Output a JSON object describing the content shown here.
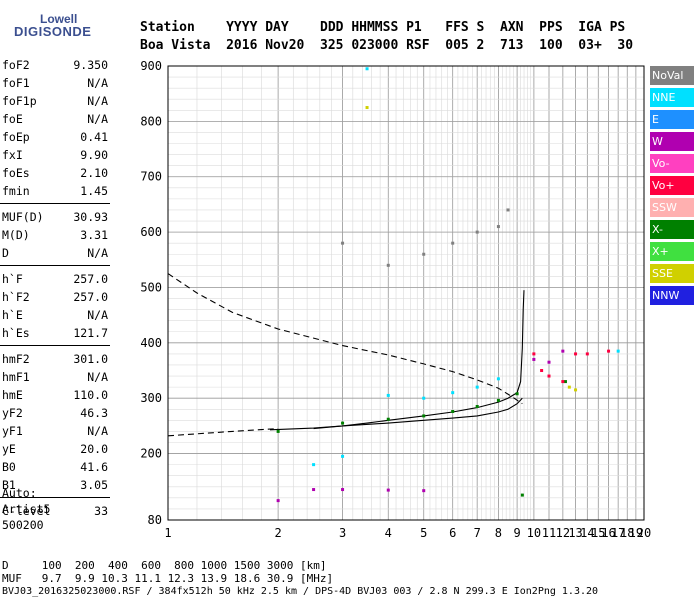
{
  "logo": {
    "line1": "Lowell",
    "line2": "DIGISONDE"
  },
  "header": {
    "labels": "Station    YYYY DAY    DDD HHMMSS P1   FFS S  AXN  PPS  IGA PS",
    "values": "Boa Vista  2016 Nov20  325 023000 RSF  005 2  713  100  03+  30"
  },
  "params": [
    [
      {
        "label": "foF2",
        "value": "9.350"
      },
      {
        "label": "foF1",
        "value": "N/A"
      },
      {
        "label": "foF1p",
        "value": "N/A"
      },
      {
        "label": "foE",
        "value": "N/A"
      },
      {
        "label": "foEp",
        "value": "0.41"
      },
      {
        "label": "fxI",
        "value": "9.90"
      },
      {
        "label": "foEs",
        "value": "2.10"
      },
      {
        "label": "fmin",
        "value": "1.45"
      }
    ],
    [
      {
        "label": "MUF(D)",
        "value": "30.93"
      },
      {
        "label": "M(D)",
        "value": "3.31"
      },
      {
        "label": "D",
        "value": "N/A"
      }
    ],
    [
      {
        "label": "h`F",
        "value": "257.0"
      },
      {
        "label": "h`F2",
        "value": "257.0"
      },
      {
        "label": "h`E",
        "value": "N/A"
      },
      {
        "label": "h`Es",
        "value": "121.7"
      }
    ],
    [
      {
        "label": "hmF2",
        "value": "301.0"
      },
      {
        "label": "hmF1",
        "value": "N/A"
      },
      {
        "label": "hmE",
        "value": "110.0"
      },
      {
        "label": "yF2",
        "value": "46.3"
      },
      {
        "label": "yF1",
        "value": "N/A"
      },
      {
        "label": "yE",
        "value": "20.0"
      },
      {
        "label": "B0",
        "value": "41.6"
      },
      {
        "label": "B1",
        "value": "3.05"
      }
    ],
    [
      {
        "label": "C-level",
        "value": "33"
      }
    ]
  ],
  "auto": {
    "line1": "Auto:",
    "line2": "Artist5",
    "line3": "500200"
  },
  "legend": [
    {
      "label": "NoVal",
      "color": "#808080"
    },
    {
      "label": "NNE",
      "color": "#00e0ff"
    },
    {
      "label": "E",
      "color": "#1e90ff"
    },
    {
      "label": "W",
      "color": "#b000b0"
    },
    {
      "label": "Vo-",
      "color": "#ff40c0"
    },
    {
      "label": "Vo+",
      "color": "#ff0040"
    },
    {
      "label": "SSW",
      "color": "#ffb0b0"
    },
    {
      "label": "X-",
      "color": "#008000"
    },
    {
      "label": "X+",
      "color": "#40e040"
    },
    {
      "label": "SSE",
      "color": "#d0d000"
    },
    {
      "label": "NNW",
      "color": "#2020e0"
    }
  ],
  "footer": {
    "d_row": "D     100  200  400  600  800 1000 1500 3000 [km]",
    "muf_row": "MUF   9.7  9.9 10.3 11.1 12.3 13.9 18.6 30.9 [MHz]",
    "file_row": "BVJ03_2016325023000.RSF / 384fx512h 50 kHz 2.5 km / DPS-4D BVJ03 003 / 2.8 N 299.3 E Ion2Png 1.3.20"
  },
  "chart_data": {
    "type": "scatter",
    "title": "",
    "xlabel": "",
    "ylabel": "",
    "x_ticks": [
      1,
      2,
      3,
      4,
      5,
      6,
      7,
      8,
      9,
      10,
      11,
      12,
      13,
      14,
      15,
      16,
      17,
      18,
      19,
      20
    ],
    "y_ticks": [
      80,
      200,
      300,
      400,
      500,
      600,
      700,
      800,
      900
    ],
    "xlim": [
      1,
      20
    ],
    "ylim": [
      80,
      900
    ],
    "x_scale": "log",
    "grid": true,
    "series": [
      {
        "type": "line",
        "values": [
          [
            1.9,
            243
          ],
          [
            2.5,
            246
          ],
          [
            3.0,
            250
          ],
          [
            3.5,
            255
          ],
          [
            4.0,
            260
          ],
          [
            5.0,
            268
          ],
          [
            6.0,
            275
          ],
          [
            7.0,
            283
          ],
          [
            8.0,
            293
          ],
          [
            8.5,
            300
          ],
          [
            9.0,
            310
          ],
          [
            9.2,
            330
          ],
          [
            9.3,
            390
          ],
          [
            9.35,
            460
          ],
          [
            9.4,
            495
          ]
        ]
      },
      {
        "type": "line",
        "values": [
          [
            2.5,
            245
          ],
          [
            3.0,
            250
          ],
          [
            4.0,
            255
          ],
          [
            5.0,
            260
          ],
          [
            6.0,
            264
          ],
          [
            7.0,
            268
          ],
          [
            8.0,
            275
          ],
          [
            8.5,
            280
          ],
          [
            9.0,
            290
          ],
          [
            9.3,
            300
          ]
        ]
      },
      {
        "type": "dashed",
        "values": [
          [
            1.0,
            525
          ],
          [
            1.2,
            490
          ],
          [
            1.5,
            455
          ],
          [
            2.0,
            425
          ],
          [
            3.0,
            395
          ],
          [
            4.0,
            378
          ],
          [
            5.0,
            362
          ],
          [
            6.0,
            348
          ],
          [
            7.0,
            333
          ],
          [
            8.0,
            318
          ],
          [
            8.7,
            303
          ],
          [
            9.3,
            290
          ]
        ]
      },
      {
        "type": "dashed",
        "values": [
          [
            1.0,
            232
          ],
          [
            1.5,
            240
          ],
          [
            2.0,
            245
          ]
        ]
      },
      {
        "type": "scatter",
        "name": "X-",
        "values": [
          [
            2.0,
            240
          ],
          [
            3.0,
            255
          ],
          [
            4.0,
            262
          ],
          [
            5.0,
            268
          ],
          [
            6.0,
            276
          ],
          [
            7.0,
            285
          ],
          [
            8.0,
            296
          ],
          [
            9.0,
            308
          ],
          [
            9.3,
            125
          ],
          [
            12.2,
            330
          ]
        ]
      },
      {
        "type": "scatter",
        "name": "W",
        "values": [
          [
            2.0,
            115
          ],
          [
            2.5,
            135
          ],
          [
            3.0,
            135
          ],
          [
            4.0,
            134
          ],
          [
            5.0,
            133
          ],
          [
            10.0,
            370
          ],
          [
            11.0,
            365
          ],
          [
            12.0,
            385
          ]
        ]
      },
      {
        "type": "scatter",
        "name": "NNE",
        "values": [
          [
            2.5,
            180
          ],
          [
            3.0,
            195
          ],
          [
            3.5,
            895
          ],
          [
            4.0,
            305
          ],
          [
            5.0,
            300
          ],
          [
            6.0,
            310
          ],
          [
            7.0,
            320
          ],
          [
            8.0,
            335
          ],
          [
            17.0,
            385
          ]
        ]
      },
      {
        "type": "scatter",
        "name": "Vo+",
        "values": [
          [
            10.0,
            380
          ],
          [
            10.5,
            350
          ],
          [
            11.0,
            340
          ],
          [
            12.0,
            330
          ],
          [
            13.0,
            380
          ],
          [
            14.0,
            380
          ],
          [
            16.0,
            385
          ]
        ]
      },
      {
        "type": "scatter",
        "name": "SSE",
        "values": [
          [
            3.5,
            825
          ],
          [
            12.5,
            320
          ],
          [
            13.0,
            315
          ]
        ]
      },
      {
        "type": "scatter",
        "name": "NoVal",
        "values": [
          [
            3.0,
            580
          ],
          [
            4.0,
            540
          ],
          [
            5.0,
            560
          ],
          [
            6.0,
            580
          ],
          [
            7.0,
            600
          ],
          [
            8.0,
            610
          ],
          [
            8.5,
            640
          ]
        ]
      }
    ]
  }
}
